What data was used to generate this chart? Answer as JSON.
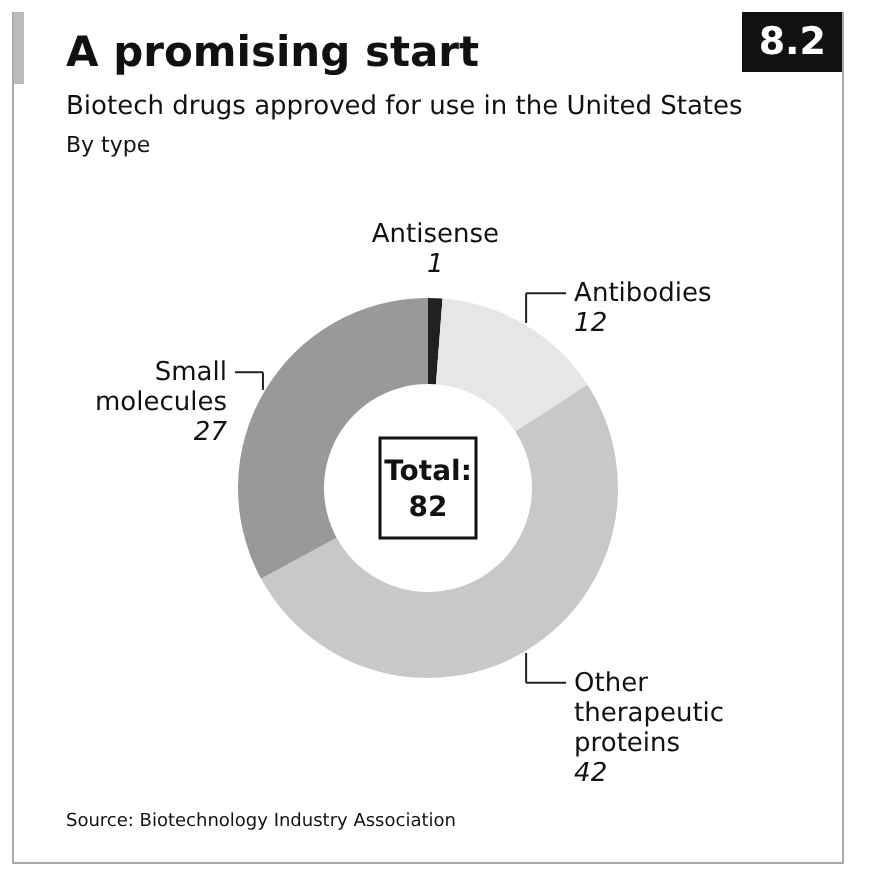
{
  "chart_data": {
    "type": "donut",
    "title": "A promising start",
    "subtitle": "Biotech drugs approved for use in the United States",
    "categories": [
      "Antisense",
      "Antibodies",
      "Other therapeutic proteins",
      "Small molecules"
    ],
    "values": [
      1,
      12,
      42,
      27
    ],
    "colors": [
      "#231f20",
      "#e6e6e6",
      "#c8c8c8",
      "#999999"
    ],
    "data_labels": true,
    "annotations": [
      "8.2",
      "By type",
      "Total:\n82",
      "Source: Biotechnology Industry Association"
    ]
  }
}
